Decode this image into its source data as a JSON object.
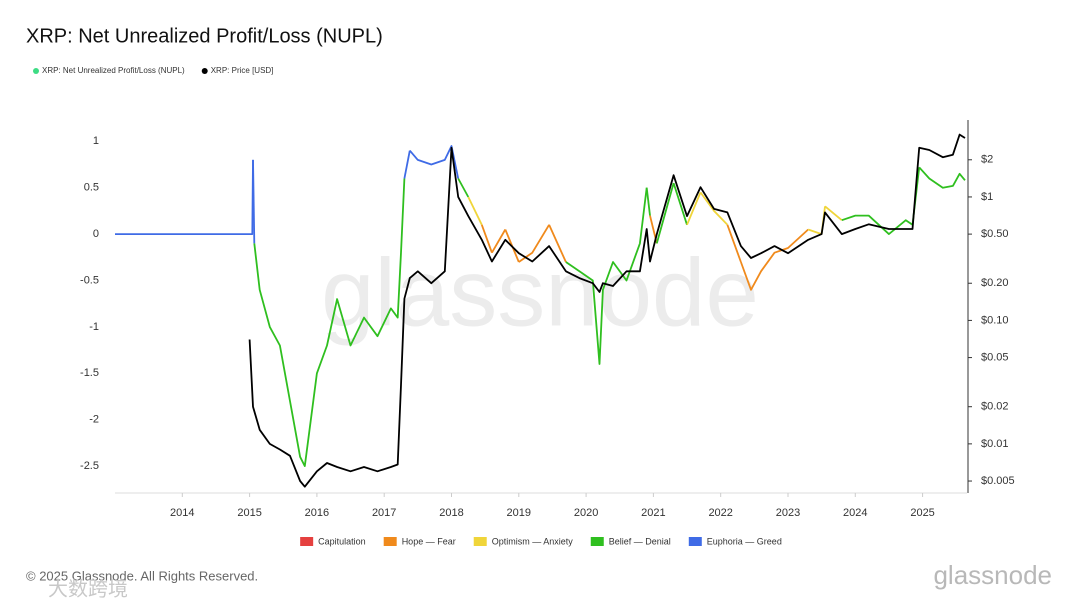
{
  "chart_data": {
    "type": "line",
    "title": "XRP: Net Unrealized Profit/Loss (NUPL)",
    "xlim": [
      2013.0,
      2025.66
    ],
    "xticks": [
      2014,
      2015,
      2016,
      2017,
      2018,
      2019,
      2020,
      2021,
      2022,
      2023,
      2024,
      2025
    ],
    "ylim": [
      -2.79,
      1.23
    ],
    "yticks": [
      1,
      0.5,
      0,
      -0.5,
      -1,
      -1.5,
      -2,
      -2.5
    ],
    "y2lim": [
      0.004,
      4.2
    ],
    "y2scale": "log",
    "y2ticks": [
      {
        "value": 2,
        "label": "$2"
      },
      {
        "value": 1,
        "label": "$1"
      },
      {
        "value": 0.5,
        "label": "$0.50"
      },
      {
        "value": 0.2,
        "label": "$0.20"
      },
      {
        "value": 0.1,
        "label": "$0.10"
      },
      {
        "value": 0.05,
        "label": "$0.05"
      },
      {
        "value": 0.02,
        "label": "$0.02"
      },
      {
        "value": 0.01,
        "label": "$0.01"
      },
      {
        "value": 0.005,
        "label": "$0.005"
      }
    ],
    "series": [
      {
        "name": "XRP: Net Unrealized Profit/Loss (NUPL)",
        "color": "#3ddc84",
        "axis": "y",
        "x": [
          2013.0,
          2015.04,
          2015.05,
          2015.07,
          2015.15,
          2015.3,
          2015.45,
          2015.6,
          2015.75,
          2015.82,
          2016.0,
          2016.15,
          2016.3,
          2016.5,
          2016.7,
          2016.9,
          2017.1,
          2017.2,
          2017.25,
          2017.3,
          2017.38,
          2017.5,
          2017.7,
          2017.9,
          2018.0,
          2018.1,
          2018.25,
          2018.45,
          2018.6,
          2018.8,
          2019.0,
          2019.2,
          2019.45,
          2019.7,
          2019.9,
          2020.1,
          2020.2,
          2020.25,
          2020.4,
          2020.6,
          2020.8,
          2020.9,
          2020.95,
          2021.05,
          2021.3,
          2021.5,
          2021.7,
          2021.9,
          2022.1,
          2022.3,
          2022.45,
          2022.6,
          2022.8,
          2023.0,
          2023.3,
          2023.5,
          2023.55,
          2023.8,
          2024.0,
          2024.2,
          2024.5,
          2024.75,
          2024.85,
          2024.95,
          2025.1,
          2025.3,
          2025.45,
          2025.55,
          2025.63
        ],
        "values": [
          0,
          0,
          0.8,
          -0.1,
          -0.6,
          -1.0,
          -1.2,
          -1.8,
          -2.4,
          -2.5,
          -1.5,
          -1.2,
          -0.7,
          -1.2,
          -0.9,
          -1.1,
          -0.8,
          -0.9,
          -0.2,
          0.6,
          0.9,
          0.8,
          0.75,
          0.8,
          0.95,
          0.6,
          0.4,
          0.1,
          -0.2,
          0.05,
          -0.3,
          -0.2,
          0.1,
          -0.3,
          -0.4,
          -0.5,
          -1.4,
          -0.6,
          -0.3,
          -0.5,
          -0.1,
          0.5,
          0.2,
          -0.1,
          0.55,
          0.1,
          0.45,
          0.25,
          0.1,
          -0.3,
          -0.6,
          -0.4,
          -0.2,
          -0.15,
          0.05,
          0.0,
          0.3,
          0.15,
          0.2,
          0.2,
          0.0,
          0.15,
          0.1,
          0.72,
          0.6,
          0.5,
          0.52,
          0.65,
          0.58
        ]
      },
      {
        "name": "XRP: Price [USD]",
        "color": "#000000",
        "axis": "y2",
        "x": [
          2015.0,
          2015.05,
          2015.15,
          2015.3,
          2015.45,
          2015.6,
          2015.75,
          2015.82,
          2016.0,
          2016.15,
          2016.3,
          2016.5,
          2016.7,
          2016.9,
          2017.1,
          2017.2,
          2017.25,
          2017.3,
          2017.38,
          2017.5,
          2017.7,
          2017.9,
          2018.0,
          2018.1,
          2018.25,
          2018.45,
          2018.6,
          2018.8,
          2019.0,
          2019.2,
          2019.45,
          2019.7,
          2019.9,
          2020.1,
          2020.2,
          2020.25,
          2020.4,
          2020.6,
          2020.8,
          2020.9,
          2020.95,
          2021.05,
          2021.3,
          2021.5,
          2021.7,
          2021.9,
          2022.1,
          2022.3,
          2022.45,
          2022.6,
          2022.8,
          2023.0,
          2023.3,
          2023.5,
          2023.55,
          2023.8,
          2024.0,
          2024.2,
          2024.5,
          2024.75,
          2024.85,
          2024.95,
          2025.1,
          2025.3,
          2025.45,
          2025.55,
          2025.63
        ],
        "values": [
          0.07,
          0.02,
          0.013,
          0.01,
          0.009,
          0.008,
          0.005,
          0.0045,
          0.006,
          0.007,
          0.0065,
          0.006,
          0.0065,
          0.006,
          0.0065,
          0.0068,
          0.03,
          0.15,
          0.22,
          0.25,
          0.2,
          0.25,
          2.5,
          1.0,
          0.7,
          0.45,
          0.3,
          0.45,
          0.35,
          0.3,
          0.4,
          0.25,
          0.22,
          0.2,
          0.17,
          0.2,
          0.19,
          0.25,
          0.25,
          0.55,
          0.3,
          0.5,
          1.5,
          0.7,
          1.2,
          0.8,
          0.75,
          0.4,
          0.32,
          0.35,
          0.4,
          0.35,
          0.45,
          0.5,
          0.75,
          0.5,
          0.55,
          0.6,
          0.55,
          0.55,
          0.55,
          2.5,
          2.4,
          2.1,
          2.2,
          3.2,
          3.0
        ]
      }
    ],
    "zone_thresholds": [
      0,
      0.25,
      0.5,
      0.75
    ],
    "zones": [
      {
        "name": "Capitulation",
        "color": "#e5403f"
      },
      {
        "name": "Hope — Fear",
        "color": "#f08a1c"
      },
      {
        "name": "Optimism — Anxiety",
        "color": "#f0d53a"
      },
      {
        "name": "Belief — Denial",
        "color": "#2fbf1f"
      },
      {
        "name": "Euphoria — Greed",
        "color": "#3f6be6"
      }
    ],
    "copyright": "© 2025 Glassnode. All Rights Reserved.",
    "logo": "glassnode",
    "watermark": "大数跨境"
  }
}
